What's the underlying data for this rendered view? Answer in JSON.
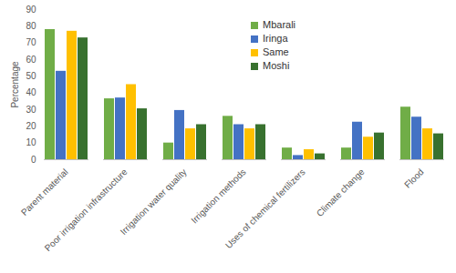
{
  "chart_data": {
    "type": "bar",
    "categories": [
      "Parent material",
      "Poor irrigation infrastructure",
      "Irrigation water quality",
      "Irrigation methods",
      "Uses of chemical fertilizers",
      "Climate change",
      "Flood"
    ],
    "series": [
      {
        "name": "Mbarali",
        "color": "#70ad47",
        "values": [
          78,
          36.5,
          10,
          26,
          7,
          7,
          31.5
        ]
      },
      {
        "name": "Iringa",
        "color": "#4472c4",
        "values": [
          53,
          37,
          29.5,
          21,
          2.5,
          22.5,
          25.5
        ]
      },
      {
        "name": "Same",
        "color": "#ffc000",
        "values": [
          77,
          45,
          18.5,
          18.5,
          6,
          13.5,
          18.5
        ]
      },
      {
        "name": "Moshi",
        "color": "#38712f",
        "values": [
          73,
          30.5,
          21,
          21,
          3.5,
          16,
          15.5
        ]
      }
    ],
    "y_label": "Percentage",
    "ylim": [
      0,
      90
    ],
    "yticks": [
      0,
      10,
      20,
      30,
      40,
      50,
      60,
      70,
      80,
      90
    ],
    "grid": false,
    "legend": "top-right"
  }
}
